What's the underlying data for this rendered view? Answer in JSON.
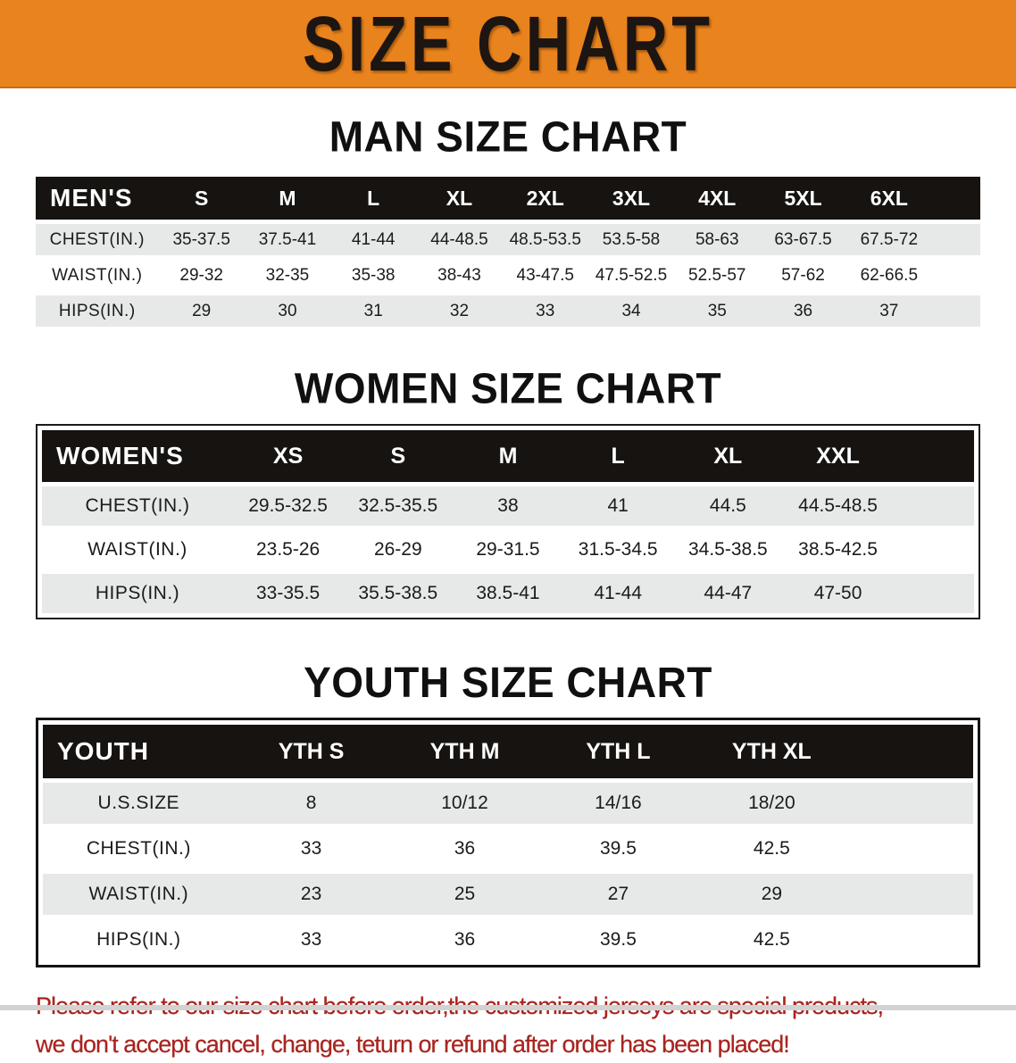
{
  "banner": {
    "title": "SIZE CHART"
  },
  "colors": {
    "banner_bg": "#E9831D",
    "header_bg": "#171310",
    "row_alt": "#E7E8E8",
    "disclaimer": "#A9241F"
  },
  "sections": [
    {
      "heading": "MAN SIZE CHART",
      "table": {
        "header_label": "MEN'S",
        "columns": [
          "S",
          "M",
          "L",
          "XL",
          "2XL",
          "3XL",
          "4XL",
          "5XL",
          "6XL"
        ],
        "rows": [
          {
            "label": "CHEST(IN.)",
            "values": [
              "35-37.5",
              "37.5-41",
              "41-44",
              "44-48.5",
              "48.5-53.5",
              "53.5-58",
              "58-63",
              "63-67.5",
              "67.5-72"
            ]
          },
          {
            "label": "WAIST(IN.)",
            "values": [
              "29-32",
              "32-35",
              "35-38",
              "38-43",
              "43-47.5",
              "47.5-52.5",
              "52.5-57",
              "57-62",
              "62-66.5"
            ]
          },
          {
            "label": "HIPS(IN.)",
            "values": [
              "29",
              "30",
              "31",
              "32",
              "33",
              "34",
              "35",
              "36",
              "37"
            ]
          }
        ]
      }
    },
    {
      "heading": "WOMEN SIZE CHART",
      "table": {
        "header_label": "WOMEN'S",
        "columns": [
          "XS",
          "S",
          "M",
          "L",
          "XL",
          "XXL"
        ],
        "rows": [
          {
            "label": "CHEST(IN.)",
            "values": [
              "29.5-32.5",
              "32.5-35.5",
              "38",
              "41",
              "44.5",
              "44.5-48.5"
            ]
          },
          {
            "label": "WAIST(IN.)",
            "values": [
              "23.5-26",
              "26-29",
              "29-31.5",
              "31.5-34.5",
              "34.5-38.5",
              "38.5-42.5"
            ]
          },
          {
            "label": "HIPS(IN.)",
            "values": [
              "33-35.5",
              "35.5-38.5",
              "38.5-41",
              "41-44",
              "44-47",
              "47-50"
            ]
          }
        ]
      }
    },
    {
      "heading": "YOUTH SIZE CHART",
      "table": {
        "header_label": "YOUTH",
        "columns": [
          "YTH S",
          "YTH M",
          "YTH L",
          "YTH XL"
        ],
        "rows": [
          {
            "label": "U.S.SIZE",
            "values": [
              "8",
              "10/12",
              "14/16",
              "18/20"
            ]
          },
          {
            "label": "CHEST(IN.)",
            "values": [
              "33",
              "36",
              "39.5",
              "42.5"
            ]
          },
          {
            "label": "WAIST(IN.)",
            "values": [
              "23",
              "25",
              "27",
              "29"
            ]
          },
          {
            "label": "HIPS(IN.)",
            "values": [
              "33",
              "36",
              "39.5",
              "42.5"
            ]
          }
        ]
      }
    }
  ],
  "disclaimer": {
    "lines": [
      "Please refer to our size chart before order,the customized jerseys are special products,",
      "we don't accept cancel, change, teturn or refund after order has been placed!"
    ]
  }
}
